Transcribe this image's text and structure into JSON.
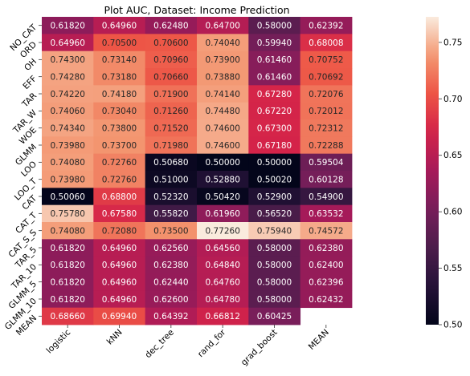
{
  "chart_data": {
    "type": "heatmap",
    "title": "Plot AUC, Dataset: Income Prediction",
    "xlabel": "",
    "ylabel": "",
    "x_categories": [
      "logistic",
      "kNN",
      "dec_tree",
      "rand_for",
      "grad_boost",
      "MEAN"
    ],
    "y_categories": [
      "NO_CAT",
      "ORD",
      "OH",
      "EFF",
      "TAR",
      "TAR_W",
      "WOE",
      "GLMM",
      "LOO",
      "LOO_T",
      "CAT",
      "CAT_T",
      "CAT_S_S",
      "TAR_5",
      "TAR_10",
      "GLMM_5",
      "GLMM_10",
      "MEAN"
    ],
    "values": [
      [
        0.6182,
        0.6496,
        0.6248,
        0.647,
        0.58,
        0.62392
      ],
      [
        0.6496,
        0.705,
        0.706,
        0.7404,
        0.5994,
        0.68008
      ],
      [
        0.743,
        0.7314,
        0.7096,
        0.739,
        0.6146,
        0.70752
      ],
      [
        0.7428,
        0.7318,
        0.7066,
        0.7388,
        0.6146,
        0.70692
      ],
      [
        0.7422,
        0.7418,
        0.719,
        0.7414,
        0.6728,
        0.72076
      ],
      [
        0.7406,
        0.7304,
        0.7126,
        0.7448,
        0.6722,
        0.72012
      ],
      [
        0.7434,
        0.738,
        0.7152,
        0.746,
        0.673,
        0.72312
      ],
      [
        0.7398,
        0.737,
        0.7198,
        0.746,
        0.6718,
        0.72288
      ],
      [
        0.7408,
        0.7276,
        0.5068,
        0.5,
        0.5,
        0.59504
      ],
      [
        0.7398,
        0.7276,
        0.51,
        0.5288,
        0.5002,
        0.60128
      ],
      [
        0.5006,
        0.688,
        0.5232,
        0.5042,
        0.529,
        0.549
      ],
      [
        0.7578,
        0.6758,
        0.5582,
        0.6196,
        0.5652,
        0.63532
      ],
      [
        0.7408,
        0.7208,
        0.735,
        0.7726,
        0.7594,
        0.74572
      ],
      [
        0.6182,
        0.6496,
        0.6256,
        0.6456,
        0.58,
        0.6238
      ],
      [
        0.6182,
        0.6496,
        0.6238,
        0.6484,
        0.58,
        0.624
      ],
      [
        0.6182,
        0.6496,
        0.6244,
        0.6476,
        0.58,
        0.62396
      ],
      [
        0.6182,
        0.6496,
        0.626,
        0.6478,
        0.58,
        0.62432
      ],
      [
        0.6866,
        0.6994,
        0.64392,
        0.66812,
        0.60425,
        null
      ]
    ],
    "value_labels": [
      [
        "0.61820",
        "0.64960",
        "0.62480",
        "0.64700",
        "0.58000",
        "0.62392"
      ],
      [
        "0.64960",
        "0.70500",
        "0.70600",
        "0.74040",
        "0.59940",
        "0.68008"
      ],
      [
        "0.74300",
        "0.73140",
        "0.70960",
        "0.73900",
        "0.61460",
        "0.70752"
      ],
      [
        "0.74280",
        "0.73180",
        "0.70660",
        "0.73880",
        "0.61460",
        "0.70692"
      ],
      [
        "0.74220",
        "0.74180",
        "0.71900",
        "0.74140",
        "0.67280",
        "0.72076"
      ],
      [
        "0.74060",
        "0.73040",
        "0.71260",
        "0.74480",
        "0.67220",
        "0.72012"
      ],
      [
        "0.74340",
        "0.73800",
        "0.71520",
        "0.74600",
        "0.67300",
        "0.72312"
      ],
      [
        "0.73980",
        "0.73700",
        "0.71980",
        "0.74600",
        "0.67180",
        "0.72288"
      ],
      [
        "0.74080",
        "0.72760",
        "0.50680",
        "0.50000",
        "0.50000",
        "0.59504"
      ],
      [
        "0.73980",
        "0.72760",
        "0.51000",
        "0.52880",
        "0.50020",
        "0.60128"
      ],
      [
        "0.50060",
        "0.68800",
        "0.52320",
        "0.50420",
        "0.52900",
        "0.54900"
      ],
      [
        "0.75780",
        "0.67580",
        "0.55820",
        "0.61960",
        "0.56520",
        "0.63532"
      ],
      [
        "0.74080",
        "0.72080",
        "0.73500",
        "0.77260",
        "0.75940",
        "0.74572"
      ],
      [
        "0.61820",
        "0.64960",
        "0.62560",
        "0.64560",
        "0.58000",
        "0.62380"
      ],
      [
        "0.61820",
        "0.64960",
        "0.62380",
        "0.64840",
        "0.58000",
        "0.62400"
      ],
      [
        "0.61820",
        "0.64960",
        "0.62440",
        "0.64760",
        "0.58000",
        "0.62396"
      ],
      [
        "0.61820",
        "0.64960",
        "0.62600",
        "0.64780",
        "0.58000",
        "0.62432"
      ],
      [
        "0.68660",
        "0.69940",
        "0.64392",
        "0.66812",
        "0.60425",
        ""
      ]
    ],
    "colorbar": {
      "colormap": "rocket",
      "vmin": 0.5,
      "vmax": 0.7726,
      "ticks": [
        0.5,
        0.55,
        0.6,
        0.65,
        0.7,
        0.75
      ],
      "tick_labels": [
        "0.50",
        "0.55",
        "0.60",
        "0.65",
        "0.70",
        "0.75"
      ]
    },
    "grid": false
  }
}
